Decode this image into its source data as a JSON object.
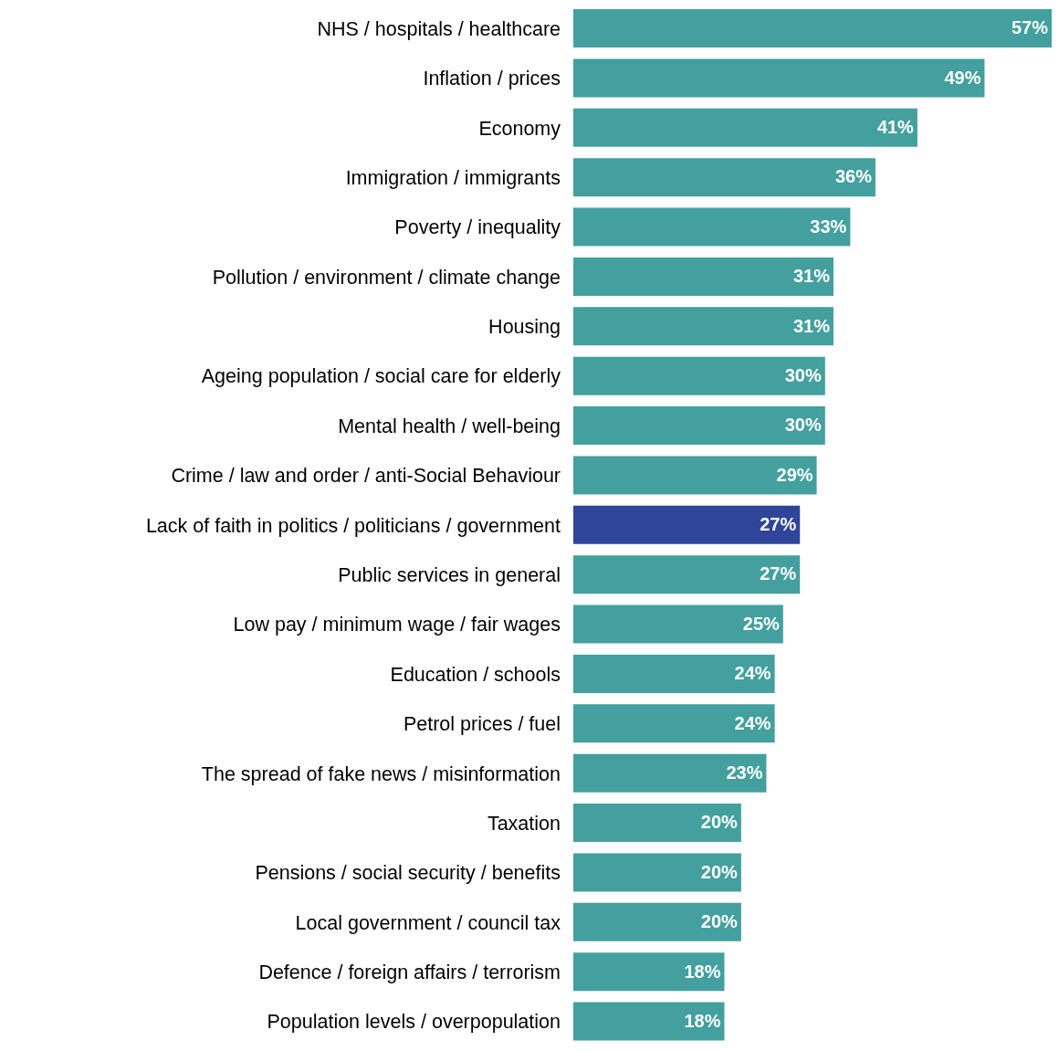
{
  "chart_data": {
    "type": "bar",
    "orientation": "horizontal",
    "categories": [
      "NHS / hospitals / healthcare",
      "Inflation / prices",
      "Economy",
      "Immigration / immigrants",
      "Poverty / inequality",
      "Pollution / environment / climate change",
      "Housing",
      "Ageing population / social care for elderly",
      "Mental health / well-being",
      "Crime / law and order / anti-Social Behaviour",
      "Lack of faith in politics / politicians / government",
      "Public services in general",
      "Low pay / minimum wage / fair wages",
      "Education / schools",
      "Petrol prices / fuel",
      "The spread of fake news / misinformation",
      "Taxation",
      "Pensions / social security / benefits",
      "Local government / council tax",
      "Defence / foreign affairs / terrorism",
      "Population levels / overpopulation"
    ],
    "values": [
      57,
      49,
      41,
      36,
      33,
      31,
      31,
      30,
      30,
      29,
      27,
      27,
      25,
      24,
      24,
      23,
      20,
      20,
      20,
      18,
      18
    ],
    "value_labels": [
      "57%",
      "49%",
      "41%",
      "36%",
      "33%",
      "31%",
      "31%",
      "30%",
      "30%",
      "29%",
      "27%",
      "27%",
      "25%",
      "24%",
      "24%",
      "23%",
      "20%",
      "20%",
      "20%",
      "18%",
      "18%"
    ],
    "colors": [
      "#43a09f",
      "#43a09f",
      "#43a09f",
      "#43a09f",
      "#43a09f",
      "#43a09f",
      "#43a09f",
      "#43a09f",
      "#43a09f",
      "#43a09f",
      "#2e4599",
      "#43a09f",
      "#43a09f",
      "#43a09f",
      "#43a09f",
      "#43a09f",
      "#43a09f",
      "#43a09f",
      "#43a09f",
      "#43a09f",
      "#43a09f"
    ],
    "grid": false,
    "legend": false
  }
}
